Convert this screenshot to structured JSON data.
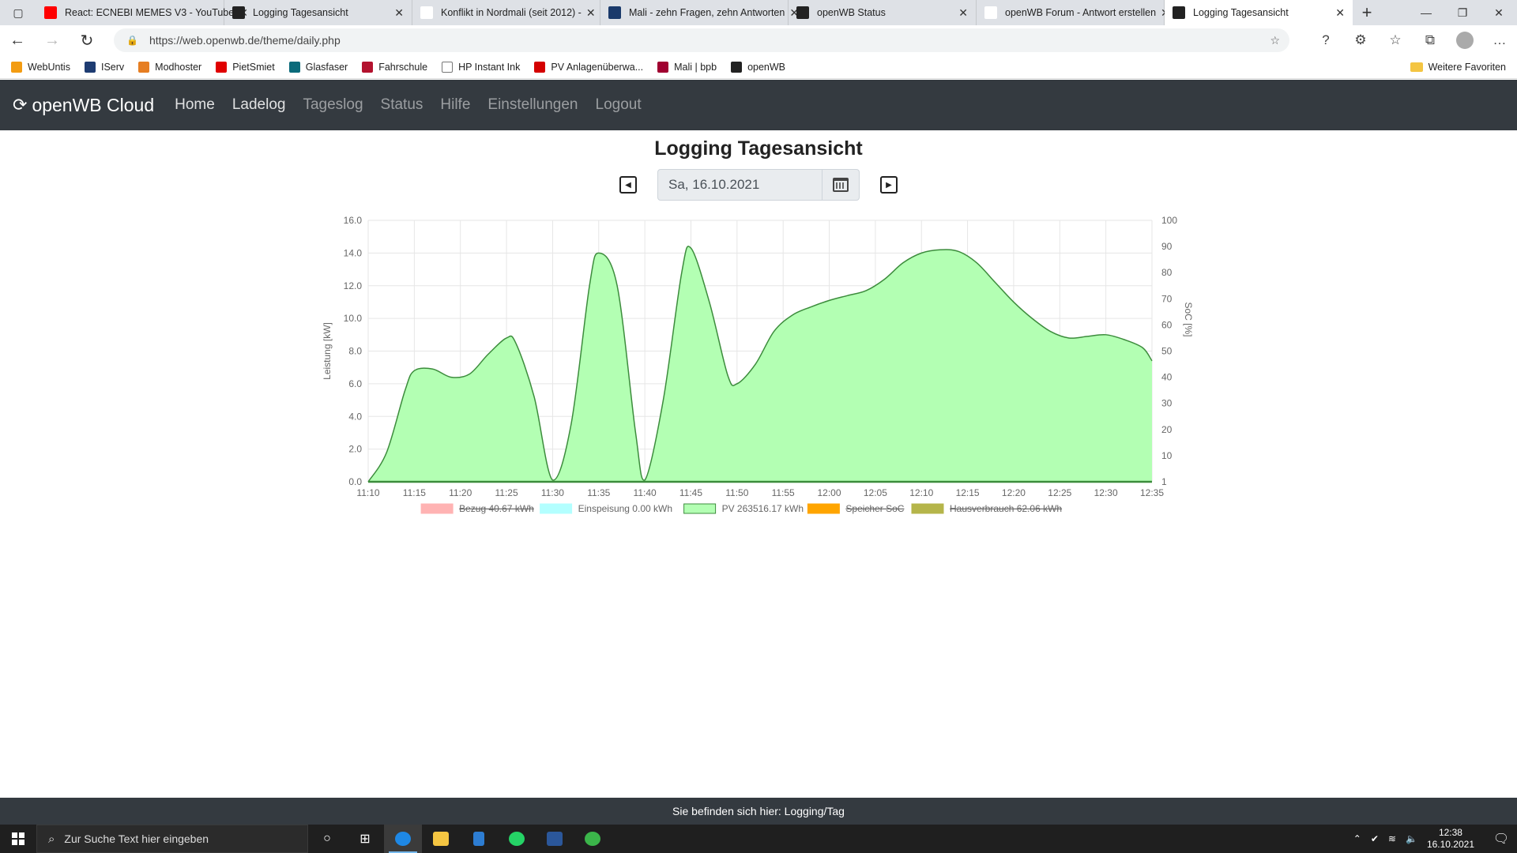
{
  "browser": {
    "tabs": [
      {
        "title": "React: ECNEBI MEMES V3 - YouTube",
        "favicon_color": "#ff0000"
      },
      {
        "title": "Logging Tagesansicht",
        "favicon_color": "#222222"
      },
      {
        "title": "Konflikt in Nordmali (seit 2012) -",
        "favicon_color": "#ffffff"
      },
      {
        "title": "Mali - zehn Fragen, zehn Antworten",
        "favicon_color": "#1a3a6b"
      },
      {
        "title": "openWB Status",
        "favicon_color": "#222222"
      },
      {
        "title": "openWB Forum - Antwort erstellen",
        "favicon_color": "#ffffff"
      },
      {
        "title": "Logging Tagesansicht",
        "favicon_color": "#222222",
        "active": true
      }
    ],
    "url": "https://web.openwb.de/theme/daily.php",
    "bookmarks": [
      {
        "label": "WebUntis",
        "color": "#f39c12"
      },
      {
        "label": "IServ",
        "color": "#1e3c72"
      },
      {
        "label": "Modhoster",
        "color": "#e67e22"
      },
      {
        "label": "PietSmiet",
        "color": "#e00000"
      },
      {
        "label": "Glasfaser",
        "color": "#0a6a7a"
      },
      {
        "label": "Fahrschule",
        "color": "#b3122e"
      },
      {
        "label": "HP Instant Ink",
        "color": "#ffffff"
      },
      {
        "label": "PV Anlagenüberwa...",
        "color": "#d40000"
      },
      {
        "label": "Mali | bpb",
        "color": "#a00030"
      },
      {
        "label": "openWB",
        "color": "#222222"
      }
    ],
    "bookmarks_other": "Weitere Favoriten"
  },
  "nav": {
    "brand": "openWB Cloud",
    "links": [
      "Home",
      "Ladelog",
      "Tageslog",
      "Status",
      "Hilfe",
      "Einstellungen",
      "Logout"
    ]
  },
  "page": {
    "title": "Logging Tagesansicht",
    "date_value": "Sa, 16.10.2021",
    "footer": "Sie befinden sich hier: Logging/Tag"
  },
  "chart_data": {
    "type": "area",
    "ylabel_left": "Leistung [kW]",
    "ylabel_right": "SoC [%]",
    "ylim_left": [
      0,
      16
    ],
    "yticks_left": [
      "0.0",
      "2.0",
      "4.0",
      "6.0",
      "8.0",
      "10.0",
      "12.0",
      "14.0",
      "16.0"
    ],
    "yticks_right": [
      "1",
      "10",
      "20",
      "30",
      "40",
      "50",
      "60",
      "70",
      "80",
      "90",
      "100"
    ],
    "xticks": [
      "11:10",
      "11:15",
      "11:20",
      "11:25",
      "11:30",
      "11:35",
      "11:40",
      "11:45",
      "11:50",
      "11:55",
      "12:00",
      "12:05",
      "12:10",
      "12:15",
      "12:20",
      "12:25",
      "12:30",
      "12:35"
    ],
    "grid": true,
    "legend_position": "bottom",
    "series": [
      {
        "name": "PV 263516.17 kWh",
        "color": "#b3ffb3",
        "line_color": "#3c8c3c",
        "x": [
          "11:10",
          "11:12",
          "11:14",
          "11:15",
          "11:17",
          "11:19",
          "11:21",
          "11:23",
          "11:25",
          "11:26",
          "11:28",
          "11:30",
          "11:32",
          "11:34",
          "11:35",
          "11:37",
          "11:39",
          "11:40",
          "11:42",
          "11:44",
          "11:45",
          "11:47",
          "11:49",
          "11:50",
          "11:52",
          "11:54",
          "11:56",
          "11:58",
          "12:00",
          "12:02",
          "12:04",
          "12:06",
          "12:08",
          "12:10",
          "12:12",
          "12:14",
          "12:16",
          "12:18",
          "12:20",
          "12:22",
          "12:24",
          "12:26",
          "12:28",
          "12:30",
          "12:32",
          "12:34",
          "12:35"
        ],
        "values": [
          0.0,
          1.8,
          5.6,
          6.8,
          6.9,
          6.4,
          6.6,
          7.8,
          8.8,
          8.5,
          5.2,
          0.1,
          3.5,
          12.0,
          14.0,
          12.0,
          3.0,
          0.1,
          5.0,
          12.8,
          14.3,
          11.0,
          6.5,
          6.0,
          7.2,
          9.2,
          10.2,
          10.7,
          11.1,
          11.4,
          11.7,
          12.4,
          13.4,
          14.0,
          14.2,
          14.1,
          13.4,
          12.2,
          11.0,
          10.0,
          9.2,
          8.8,
          8.9,
          9.0,
          8.7,
          8.2,
          7.4
        ]
      },
      {
        "name": "Bezug 40.67 kWh",
        "color": "#ffb3b3",
        "hidden": true,
        "values": []
      },
      {
        "name": "Einspeisung 0.00 kWh",
        "color": "#b3ffff",
        "values": [
          0
        ]
      },
      {
        "name": "Speicher SoC",
        "color": "#ffa500",
        "hidden": true,
        "values": []
      },
      {
        "name": "Hausverbrauch 62.06 kWh",
        "color": "#b5b54a",
        "hidden": true,
        "values": []
      }
    ],
    "legend_order": [
      1,
      2,
      0,
      3,
      4
    ]
  },
  "taskbar": {
    "search_placeholder": "Zur Suche Text hier eingeben",
    "time": "12:38",
    "date": "16.10.2021"
  }
}
